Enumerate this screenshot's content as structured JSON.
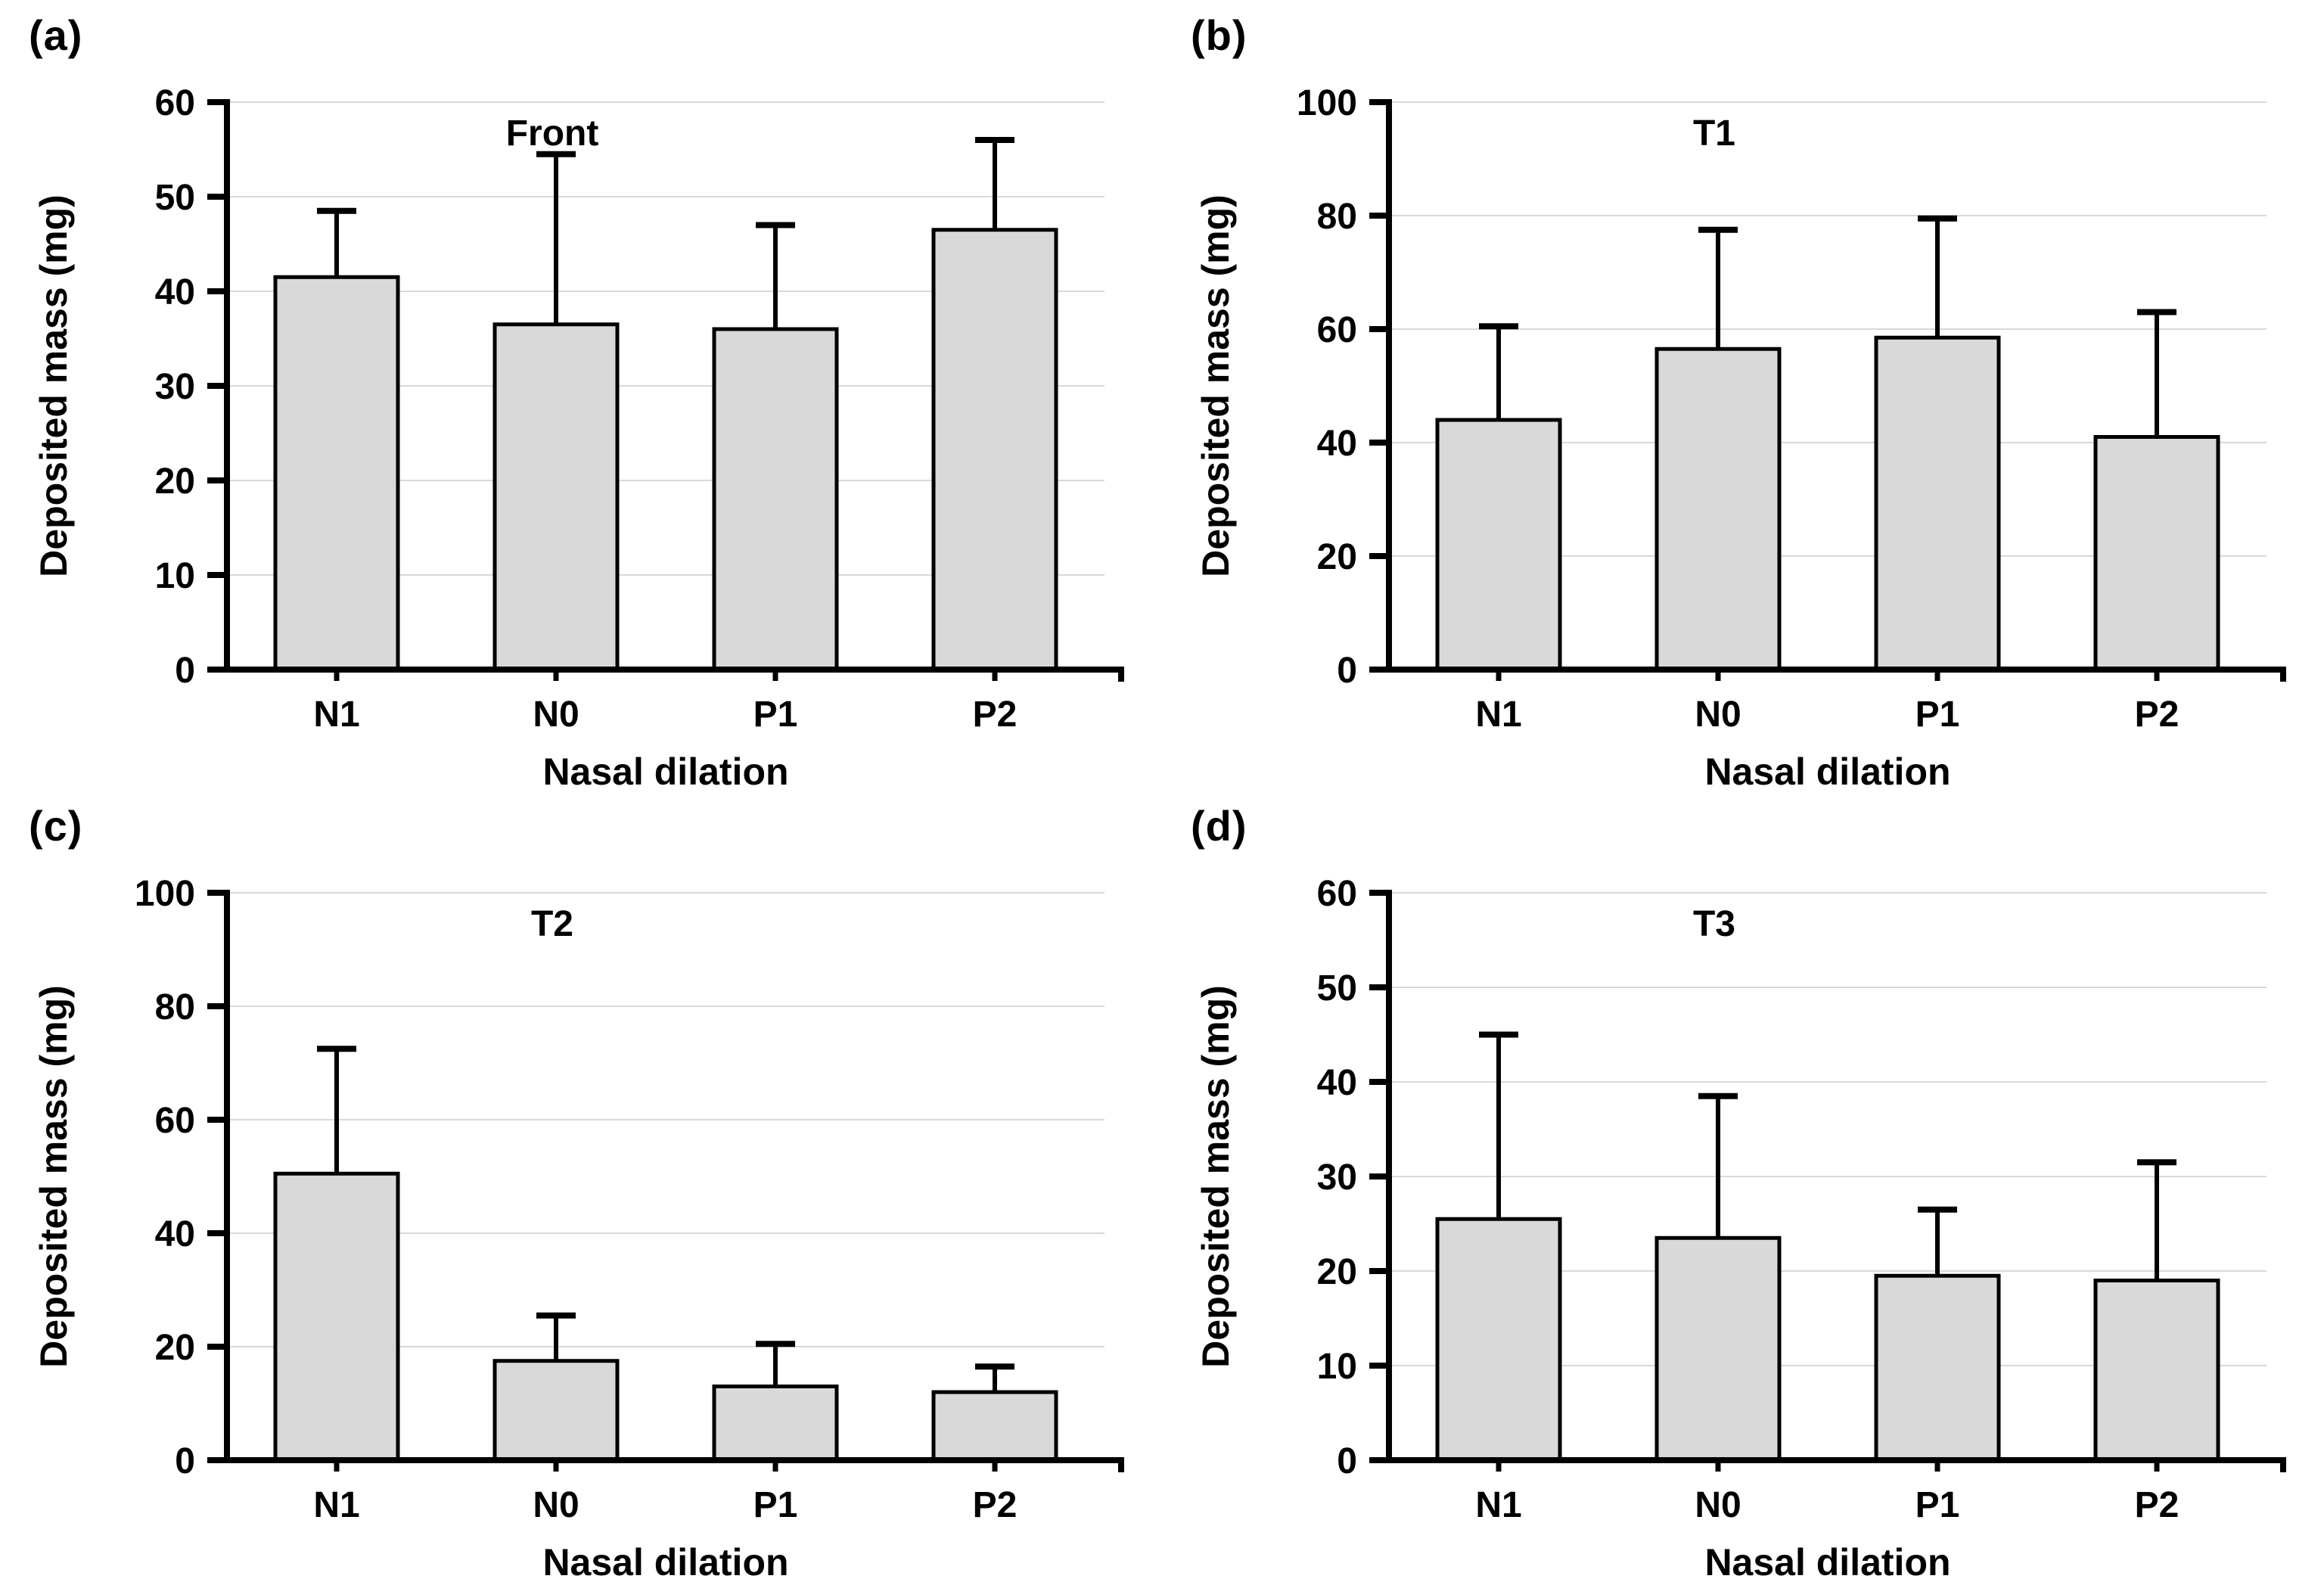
{
  "figure": {
    "background": "#ffffff",
    "panel_grid": "2x2"
  },
  "styles": {
    "bar_fill": "#d9d9d9",
    "bar_edge": "#000000",
    "grid_color": "#d9d9d9",
    "axis_color": "#000000",
    "text_color": "#000000"
  },
  "chart_data": [
    {
      "type": "bar",
      "panel_label": "(a)",
      "title": "Front",
      "xlabel": "Nasal dilation",
      "ylabel": "Deposited mass (mg)",
      "categories": [
        "N1",
        "N0",
        "P1",
        "P2"
      ],
      "values": [
        41.5,
        36.5,
        36,
        46.5
      ],
      "error_up": [
        7,
        18,
        11,
        9.5
      ],
      "ylim": [
        0,
        60
      ],
      "ytick_step": 10,
      "ytick_labels": [
        "0",
        "10",
        "20",
        "30",
        "40",
        "50",
        "60"
      ],
      "grid": true,
      "legend": "none"
    },
    {
      "type": "bar",
      "panel_label": "(b)",
      "title": "T1",
      "xlabel": "Nasal dilation",
      "ylabel": "Deposited mass (mg)",
      "categories": [
        "N1",
        "N0",
        "P1",
        "P2"
      ],
      "values": [
        44,
        56.5,
        58.5,
        41
      ],
      "error_up": [
        16.5,
        21,
        21,
        22
      ],
      "ylim": [
        0,
        100
      ],
      "ytick_step": 20,
      "ytick_labels": [
        "0",
        "20",
        "40",
        "60",
        "80",
        "100"
      ],
      "grid": true,
      "legend": "none"
    },
    {
      "type": "bar",
      "panel_label": "(c)",
      "title": "T2",
      "xlabel": "Nasal dilation",
      "ylabel": "Deposited mass (mg)",
      "categories": [
        "N1",
        "N0",
        "P1",
        "P2"
      ],
      "values": [
        50.5,
        17.5,
        13,
        12
      ],
      "error_up": [
        22,
        8,
        7.5,
        4.5
      ],
      "ylim": [
        0,
        100
      ],
      "ytick_step": 20,
      "ytick_labels": [
        "0",
        "20",
        "40",
        "60",
        "80",
        "100"
      ],
      "grid": true,
      "legend": "none"
    },
    {
      "type": "bar",
      "panel_label": "(d)",
      "title": "T3",
      "xlabel": "Nasal dilation",
      "ylabel": "Deposited mass (mg)",
      "categories": [
        "N1",
        "N0",
        "P1",
        "P2"
      ],
      "values": [
        25.5,
        23.5,
        19.5,
        19
      ],
      "error_up": [
        19.5,
        15,
        7,
        12.5
      ],
      "ylim": [
        0,
        60
      ],
      "ytick_step": 10,
      "ytick_labels": [
        "0",
        "10",
        "20",
        "30",
        "40",
        "50",
        "60"
      ],
      "grid": true,
      "legend": "none"
    }
  ]
}
